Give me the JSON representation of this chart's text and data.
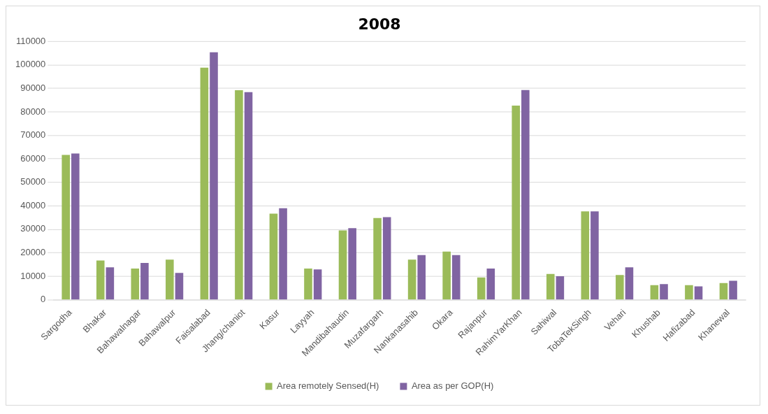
{
  "chart_data": {
    "type": "bar",
    "title": "2008",
    "categories": [
      "Sargodha",
      "Bhakar",
      "Bahawalnagar",
      "Bahawalpur",
      "Faisalabad",
      "Jhang/chaniot",
      "Kasur",
      "Layyah",
      "Mandibahaudin",
      "Muzafargarh",
      "Nankanasahib",
      "Okara",
      "Rajanpur",
      "RahimYarKhan",
      "Sahiwal",
      "TobaTekSingh",
      "Vehari",
      "Khushab",
      "Hafizabad",
      "Khanewal"
    ],
    "series": [
      {
        "name": "Area remotely Sensed(H)",
        "color": "#9bbb59",
        "values": [
          61700,
          16700,
          13300,
          17100,
          98800,
          89200,
          36700,
          13300,
          29500,
          34800,
          17100,
          20500,
          9500,
          82700,
          11000,
          37600,
          10500,
          6200,
          6200,
          7100
        ]
      },
      {
        "name": "Area as per GOP(H)",
        "color": "#8064a2",
        "values": [
          62300,
          13800,
          15700,
          11400,
          105400,
          88400,
          39000,
          12900,
          30500,
          35200,
          19000,
          19000,
          13300,
          89300,
          10000,
          37600,
          13800,
          6700,
          5700,
          8100
        ]
      }
    ],
    "ylim": [
      0,
      110000
    ],
    "yticks": [
      0,
      10000,
      20000,
      30000,
      40000,
      50000,
      60000,
      70000,
      80000,
      90000,
      100000,
      110000
    ],
    "grid": "y",
    "legend": "bottom"
  }
}
